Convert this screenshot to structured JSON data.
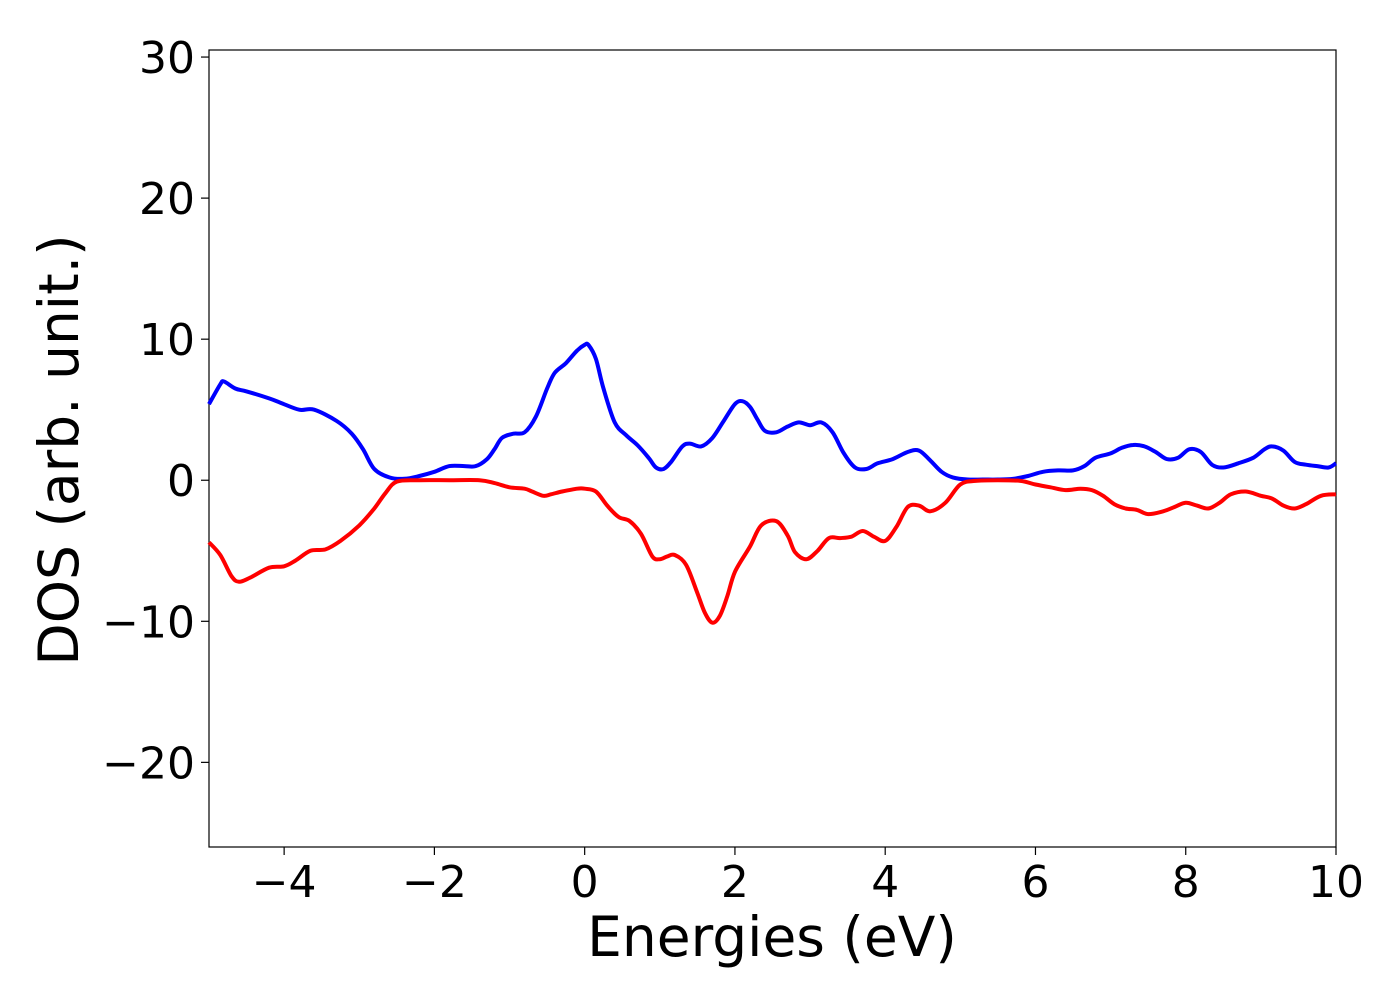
{
  "chart_data": {
    "type": "line",
    "title": "",
    "xlabel": "Energies (eV)",
    "ylabel": "DOS (arb. unit.)",
    "xlim": [
      -5,
      10
    ],
    "ylim": [
      -26,
      30.5
    ],
    "x_ticks": [
      -4,
      -2,
      0,
      2,
      4,
      6,
      8,
      10
    ],
    "x_tick_labels": [
      "−4",
      "−2",
      "0",
      "2",
      "4",
      "6",
      "8",
      "10"
    ],
    "y_ticks": [
      -20,
      -10,
      0,
      10,
      20,
      30
    ],
    "y_tick_labels": [
      "−20",
      "−10",
      "0",
      "10",
      "20",
      "30"
    ],
    "grid": false,
    "legend": "none",
    "series": [
      {
        "color": "#0000ff",
        "x": [
          -5.0,
          -4.85,
          -4.8,
          -4.65,
          -4.5,
          -4.2,
          -4.05,
          -3.8,
          -3.6,
          -3.3,
          -3.1,
          -2.95,
          -2.8,
          -2.6,
          -2.4,
          -2.2,
          -2.0,
          -1.8,
          -1.6,
          -1.45,
          -1.3,
          -1.2,
          -1.1,
          -0.95,
          -0.8,
          -0.65,
          -0.5,
          -0.4,
          -0.25,
          -0.1,
          0.0,
          0.05,
          0.15,
          0.25,
          0.4,
          0.55,
          0.7,
          0.85,
          0.95,
          1.05,
          1.15,
          1.3,
          1.4,
          1.55,
          1.7,
          1.85,
          2.0,
          2.1,
          2.2,
          2.3,
          2.4,
          2.55,
          2.7,
          2.85,
          3.0,
          3.15,
          3.3,
          3.45,
          3.6,
          3.75,
          3.9,
          4.1,
          4.3,
          4.45,
          4.6,
          4.75,
          4.9,
          5.1,
          5.3,
          5.5,
          5.7,
          5.9,
          6.1,
          6.3,
          6.5,
          6.65,
          6.8,
          7.0,
          7.15,
          7.3,
          7.45,
          7.6,
          7.75,
          7.9,
          8.05,
          8.2,
          8.35,
          8.5,
          8.7,
          8.9,
          9.05,
          9.15,
          9.3,
          9.45,
          9.6,
          9.75,
          9.9,
          10.0
        ],
        "y": [
          5.4,
          6.8,
          7.0,
          6.5,
          6.3,
          5.8,
          5.5,
          5.0,
          5.0,
          4.2,
          3.3,
          2.2,
          0.8,
          0.2,
          0.1,
          0.3,
          0.6,
          1.0,
          1.0,
          1.0,
          1.5,
          2.2,
          3.0,
          3.3,
          3.4,
          4.5,
          6.5,
          7.6,
          8.3,
          9.2,
          9.6,
          9.6,
          8.6,
          6.5,
          4.1,
          3.2,
          2.5,
          1.6,
          0.9,
          0.8,
          1.3,
          2.4,
          2.6,
          2.4,
          3.0,
          4.2,
          5.4,
          5.6,
          5.2,
          4.3,
          3.5,
          3.4,
          3.8,
          4.1,
          3.9,
          4.1,
          3.4,
          1.9,
          0.9,
          0.8,
          1.2,
          1.5,
          2.0,
          2.1,
          1.4,
          0.6,
          0.2,
          0.05,
          0.05,
          0.05,
          0.1,
          0.3,
          0.6,
          0.7,
          0.7,
          1.0,
          1.6,
          1.9,
          2.3,
          2.5,
          2.4,
          2.0,
          1.5,
          1.6,
          2.2,
          2.0,
          1.1,
          0.9,
          1.2,
          1.6,
          2.2,
          2.4,
          2.1,
          1.3,
          1.1,
          1.0,
          0.9,
          1.2
        ]
      },
      {
        "color": "#ff0000",
        "x": [
          -5.0,
          -4.85,
          -4.7,
          -4.6,
          -4.45,
          -4.2,
          -4.0,
          -3.85,
          -3.65,
          -3.45,
          -3.25,
          -3.0,
          -2.8,
          -2.65,
          -2.5,
          -2.2,
          -1.8,
          -1.4,
          -1.2,
          -1.0,
          -0.8,
          -0.7,
          -0.55,
          -0.45,
          -0.3,
          -0.1,
          0.0,
          0.15,
          0.3,
          0.45,
          0.6,
          0.75,
          0.9,
          1.0,
          1.1,
          1.2,
          1.35,
          1.5,
          1.6,
          1.7,
          1.8,
          1.9,
          2.0,
          2.2,
          2.35,
          2.55,
          2.7,
          2.8,
          2.95,
          3.1,
          3.25,
          3.4,
          3.55,
          3.7,
          3.85,
          4.0,
          4.15,
          4.3,
          4.45,
          4.6,
          4.8,
          5.0,
          5.2,
          5.5,
          5.8,
          6.0,
          6.2,
          6.4,
          6.6,
          6.75,
          6.9,
          7.05,
          7.2,
          7.35,
          7.5,
          7.7,
          7.85,
          8.0,
          8.15,
          8.3,
          8.45,
          8.6,
          8.8,
          9.0,
          9.15,
          9.3,
          9.45,
          9.6,
          9.8,
          10.0
        ],
        "y": [
          -4.4,
          -5.3,
          -6.8,
          -7.2,
          -6.9,
          -6.2,
          -6.1,
          -5.7,
          -5.0,
          -4.9,
          -4.3,
          -3.2,
          -2.0,
          -0.9,
          -0.1,
          0.0,
          0.0,
          0.0,
          -0.2,
          -0.5,
          -0.6,
          -0.8,
          -1.1,
          -1.0,
          -0.8,
          -0.6,
          -0.6,
          -0.8,
          -1.8,
          -2.6,
          -2.9,
          -3.8,
          -5.4,
          -5.6,
          -5.4,
          -5.3,
          -6.0,
          -8.0,
          -9.4,
          -10.1,
          -9.6,
          -8.2,
          -6.5,
          -4.7,
          -3.2,
          -2.9,
          -3.9,
          -5.1,
          -5.6,
          -5.0,
          -4.1,
          -4.1,
          -4.0,
          -3.6,
          -4.0,
          -4.3,
          -3.3,
          -1.9,
          -1.8,
          -2.2,
          -1.6,
          -0.3,
          -0.05,
          0.0,
          -0.05,
          -0.3,
          -0.5,
          -0.7,
          -0.6,
          -0.7,
          -1.1,
          -1.7,
          -2.0,
          -2.1,
          -2.4,
          -2.2,
          -1.9,
          -1.6,
          -1.8,
          -2.0,
          -1.6,
          -1.0,
          -0.8,
          -1.1,
          -1.3,
          -1.8,
          -2.0,
          -1.7,
          -1.1,
          -1.0
        ]
      }
    ]
  }
}
